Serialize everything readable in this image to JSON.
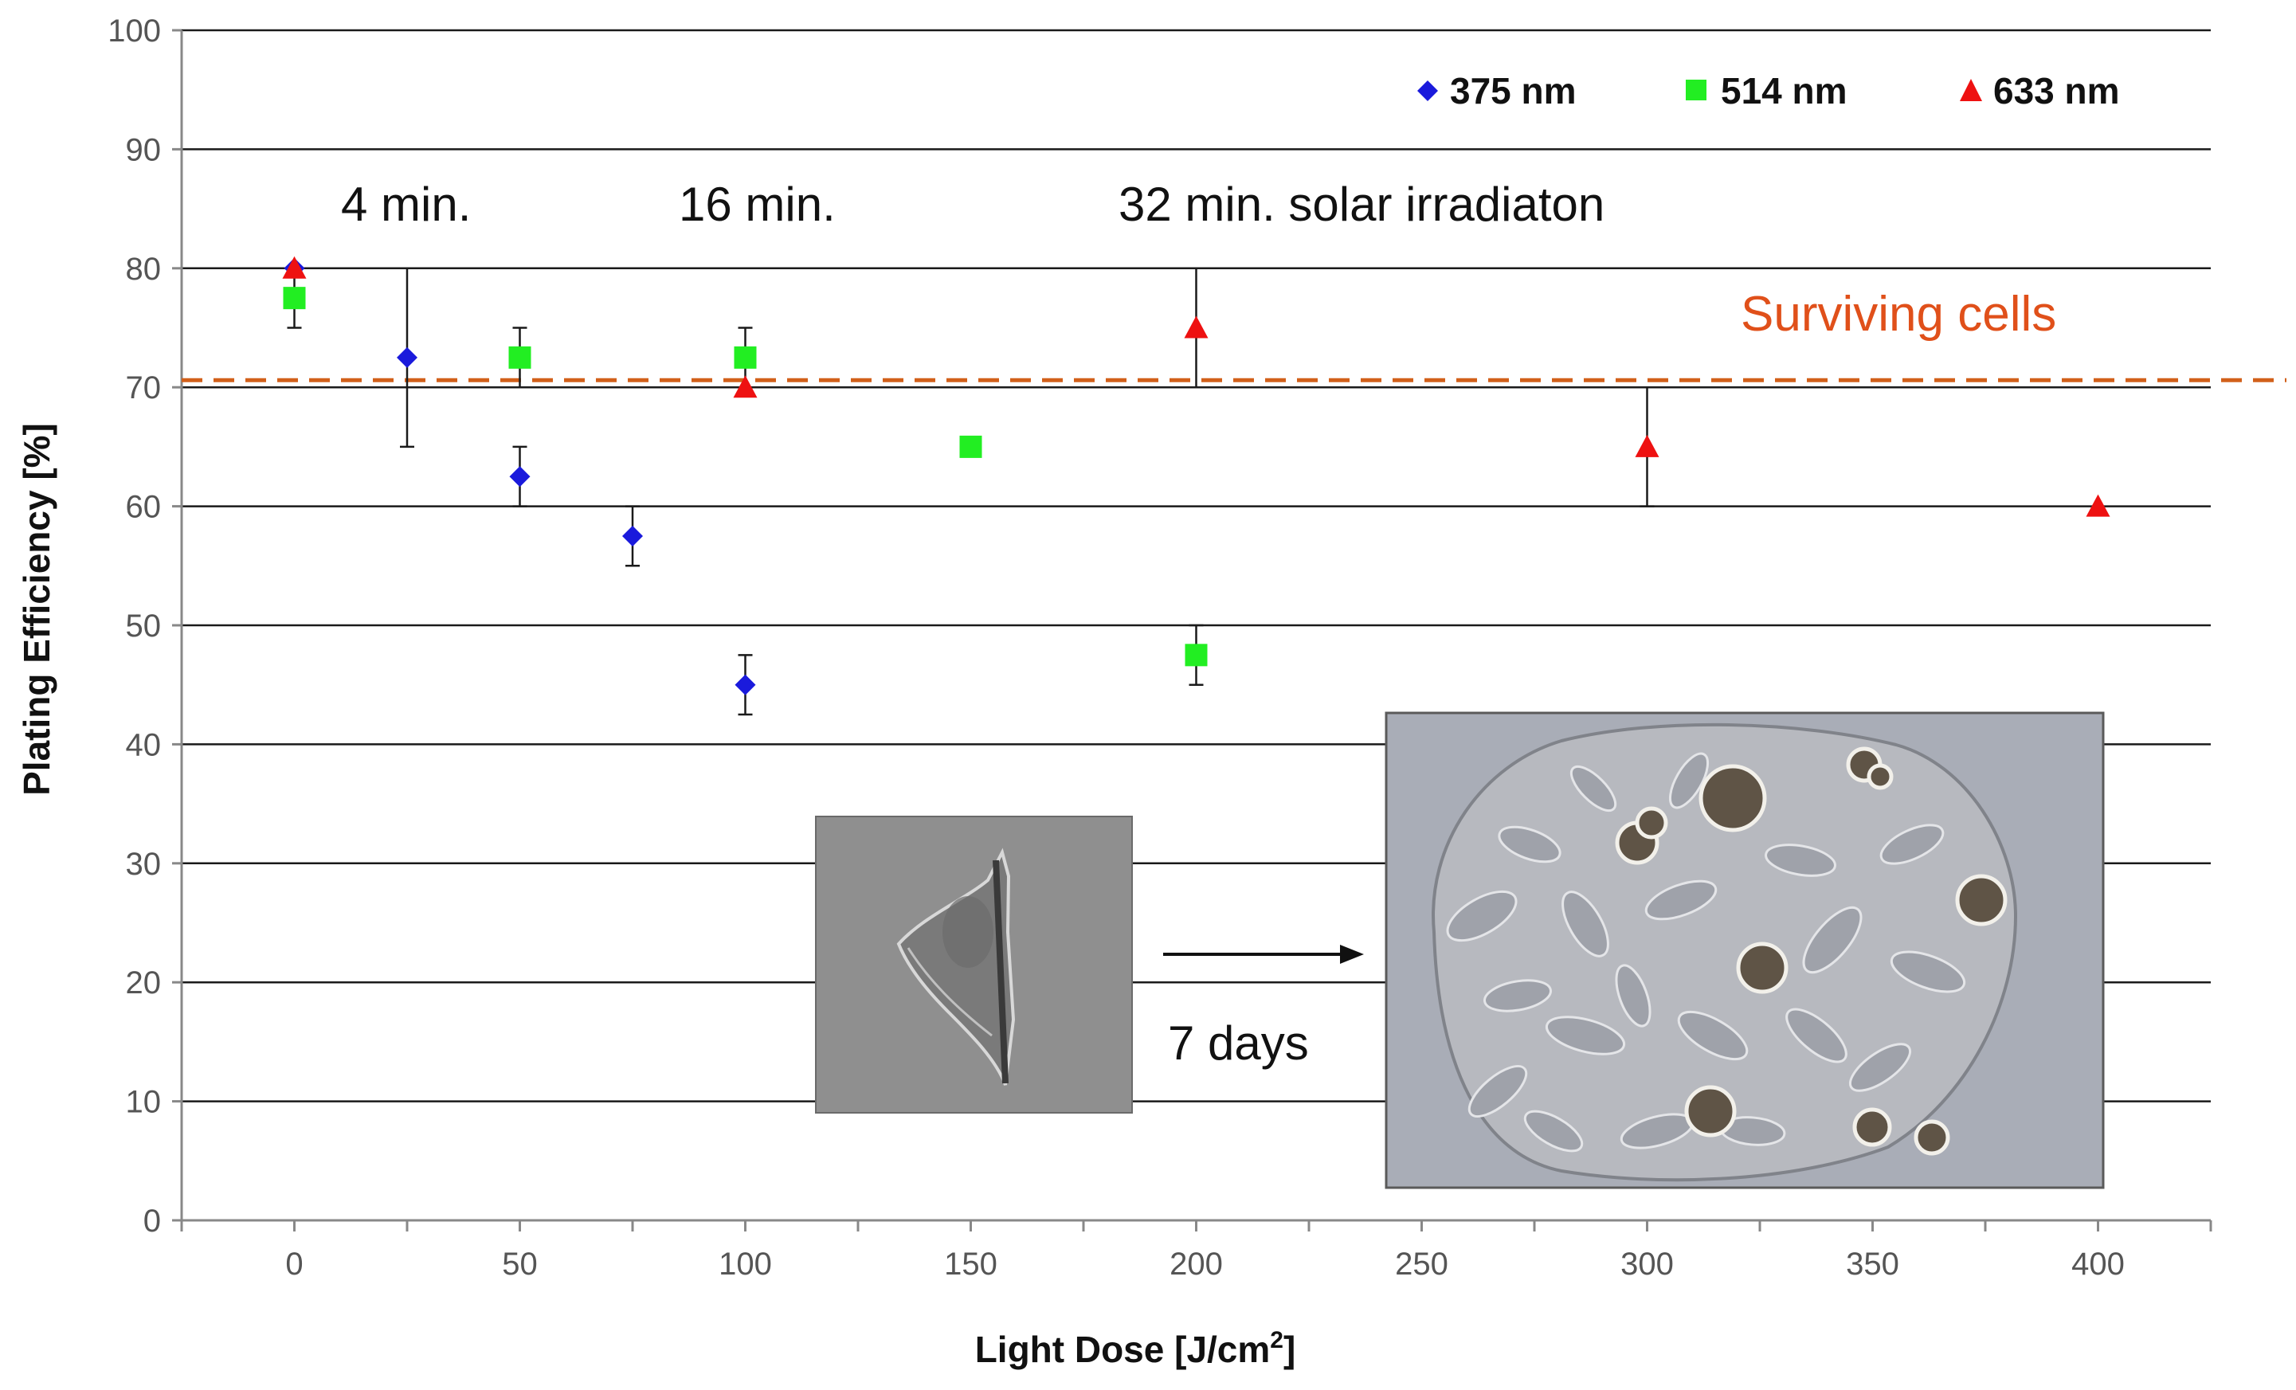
{
  "chart_data": {
    "type": "scatter",
    "xlabel": "Light Dose [J/cm",
    "xlabel_sup": "2",
    "xlabel_end": "]",
    "ylabel": "Plating Efficiency [%]",
    "xlim": [
      -25,
      425
    ],
    "ylim": [
      0,
      100
    ],
    "x_ticks": [
      0,
      50,
      100,
      150,
      200,
      250,
      300,
      350,
      400
    ],
    "y_ticks": [
      0,
      10,
      20,
      30,
      40,
      50,
      60,
      70,
      80,
      90,
      100
    ],
    "grid": "horizontal",
    "legend_position": "top-right",
    "series": [
      {
        "name": "375 nm",
        "marker": "diamond",
        "color": "#1a1adc",
        "points": [
          {
            "x": 0,
            "y": 80
          },
          {
            "x": 25,
            "y": 72.5,
            "err_up": 7.5,
            "err_down": 7.5
          },
          {
            "x": 50,
            "y": 62.5,
            "err_up": 2.5,
            "err_down": 2.5
          },
          {
            "x": 75,
            "y": 57.5,
            "err_up": 2.5,
            "err_down": 2.5
          },
          {
            "x": 100,
            "y": 45,
            "err_up": 2.5,
            "err_down": 2.5
          }
        ]
      },
      {
        "name": "514 nm",
        "marker": "square",
        "color": "#22ee22",
        "points": [
          {
            "x": 0,
            "y": 77.5,
            "err_up": 2.5,
            "err_down": 2.5
          },
          {
            "x": 50,
            "y": 72.5,
            "err_up": 2.5,
            "err_down": 2.5
          },
          {
            "x": 100,
            "y": 72.5,
            "err_up": 2.5,
            "err_down": 2.5
          },
          {
            "x": 150,
            "y": 65
          },
          {
            "x": 200,
            "y": 47.5,
            "err_up": 2.5,
            "err_down": 2.5
          }
        ]
      },
      {
        "name": "633 nm",
        "marker": "triangle",
        "color": "#ee1111",
        "points": [
          {
            "x": 0,
            "y": 80
          },
          {
            "x": 100,
            "y": 70
          },
          {
            "x": 200,
            "y": 75,
            "err_up": 5,
            "err_down": 5
          },
          {
            "x": 300,
            "y": 65,
            "err_up": 5,
            "err_down": 5
          },
          {
            "x": 400,
            "y": 60
          }
        ]
      }
    ],
    "reference_line": {
      "y": 70.6,
      "label": "Surviving cells",
      "color": "#d2601a"
    },
    "annotations": {
      "t4": "4 min.",
      "t16": "16 min.",
      "t32": "32 min. solar irradiaton",
      "days": "7 days"
    },
    "insets": [
      {
        "name": "single-cell-micrograph",
        "tone": "#8e8e8e"
      },
      {
        "name": "cell-colony-micrograph",
        "tone": "#a8acb6"
      }
    ]
  }
}
